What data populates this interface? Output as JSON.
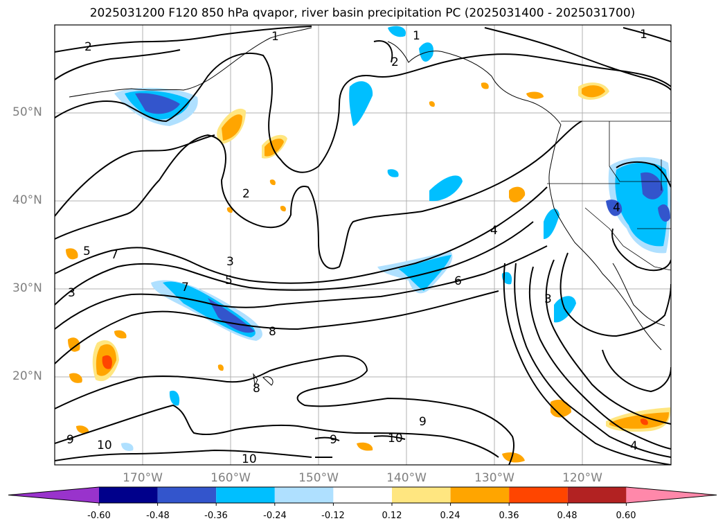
{
  "title": "2025031200 F120 850 hPa qvapor, river basin precipitation PC (2025031400 - 2025031700)",
  "lat_labels": [
    "50°N",
    "40°N",
    "30°N",
    "20°N"
  ],
  "lon_labels": [
    "170°W",
    "160°W",
    "150°W",
    "140°W",
    "130°W",
    "120°W"
  ],
  "contour_labels": [
    "1",
    "1",
    "1",
    "2",
    "2",
    "2",
    "3",
    "3",
    "3",
    "4",
    "4",
    "4",
    "5",
    "5",
    "6",
    "7",
    "7",
    "8",
    "8",
    "9",
    "9",
    "9",
    "10",
    "10",
    "10"
  ],
  "colorbar": {
    "ticks": [
      "-0.60",
      "-0.48",
      "-0.36",
      "-0.24",
      "-0.12",
      "0.12",
      "0.24",
      "0.36",
      "0.48",
      "0.60"
    ],
    "colors": [
      "#9933cc",
      "#00008b",
      "#3355cc",
      "#00bfff",
      "#afe0ff",
      "#ffffff",
      "#ffe680",
      "#ffa500",
      "#ff4500",
      "#b22222",
      "#ff88aa"
    ]
  }
}
